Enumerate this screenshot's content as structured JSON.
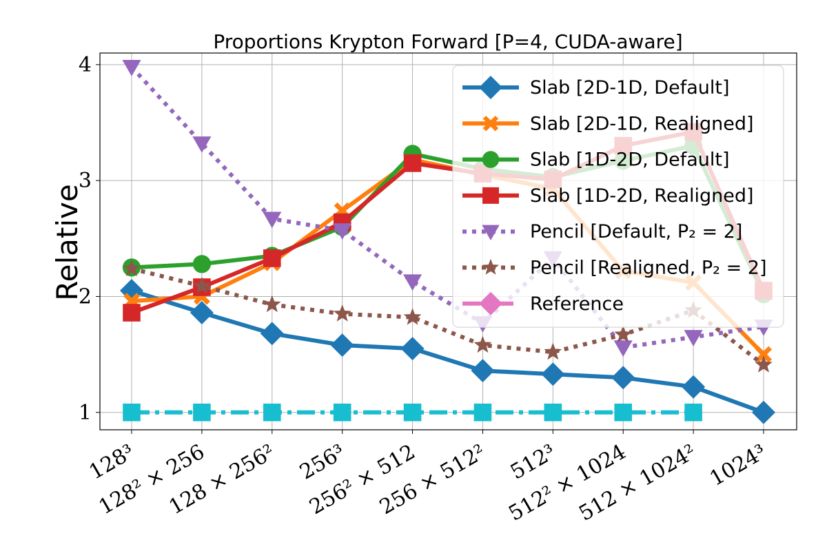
{
  "chart_data": {
    "type": "line",
    "title": "Proportions Krypton Forward [P=4, CUDA-aware]",
    "ylabel": "Relative",
    "xlabel": "",
    "categories": [
      "128³",
      "128² × 256",
      "128 × 256²",
      "256³",
      "256² × 512",
      "256 × 512²",
      "512³",
      "512² × 1024",
      "512 × 1024²",
      "1024³"
    ],
    "ylim": [
      0.85,
      4.1
    ],
    "yticks": [
      1,
      2,
      3,
      4
    ],
    "grid": true,
    "legend_position": "top-right",
    "series": [
      {
        "name": "Slab [2D-1D, Default]",
        "color": "#1f77b4",
        "marker": "diamond",
        "dash": "solid",
        "values": [
          2.05,
          1.86,
          1.68,
          1.58,
          1.55,
          1.36,
          1.33,
          1.3,
          1.22,
          1.0
        ]
      },
      {
        "name": "Slab [2D-1D, Realigned]",
        "color": "#ff7f0e",
        "marker": "x",
        "dash": "solid",
        "values": [
          1.96,
          2.0,
          2.29,
          2.74,
          3.18,
          3.05,
          2.93,
          2.22,
          2.12,
          1.5
        ]
      },
      {
        "name": "Slab [1D-2D, Default]",
        "color": "#2ca02c",
        "marker": "circle",
        "dash": "solid",
        "values": [
          2.25,
          2.28,
          2.35,
          2.6,
          3.23,
          3.1,
          3.03,
          3.17,
          3.3,
          2.02
        ]
      },
      {
        "name": "Slab [1D-2D, Realigned]",
        "color": "#d62728",
        "marker": "square",
        "dash": "solid",
        "values": [
          1.86,
          2.08,
          2.33,
          2.64,
          3.15,
          3.06,
          3.01,
          3.3,
          3.42,
          2.05
        ]
      },
      {
        "name": "Pencil [Default, P₂ = 2]",
        "color": "#9467bd",
        "marker": "triangle-down",
        "dash": "dotted",
        "values": [
          3.98,
          3.32,
          2.67,
          2.57,
          2.13,
          1.77,
          2.33,
          1.56,
          1.65,
          1.74
        ]
      },
      {
        "name": "Pencil [Realigned, P₂ = 2]",
        "color": "#8c564b",
        "marker": "star",
        "dash": "dotted",
        "values": [
          2.24,
          2.09,
          1.93,
          1.85,
          1.82,
          1.58,
          1.52,
          1.67,
          1.88,
          1.41
        ]
      },
      {
        "name": "Reference",
        "color": "#e377c2",
        "marker": "diamond",
        "dash": "dashdot",
        "values": [
          null,
          null,
          null,
          null,
          null,
          null,
          null,
          null,
          null,
          null
        ]
      },
      {
        "name": "",
        "color": "#17becf",
        "marker": "square",
        "dash": "dashdot",
        "values": [
          1.0,
          1.0,
          1.0,
          1.0,
          1.0,
          1.0,
          1.0,
          1.0,
          1.0,
          null
        ]
      }
    ]
  }
}
